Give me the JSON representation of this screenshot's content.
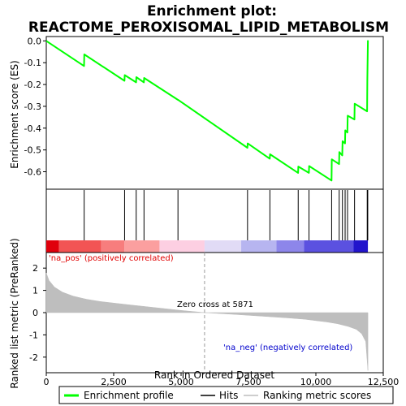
{
  "chart_data": {
    "type": "line",
    "title_line1": "Enrichment plot:",
    "title_line2": "REACTOME_PEROXISOMAL_LIPID_METABOLISM",
    "xlabel": "Rank in Ordered Dataset",
    "top_ylabel": "Enrichment score (ES)",
    "bottom_ylabel": "Ranked list metric (PreRanked)",
    "xlim": [
      0,
      12500
    ],
    "top_ylim": [
      -0.68,
      0.02
    ],
    "bottom_ylim": [
      -2.7,
      2.7
    ],
    "x_ticks": [
      0,
      2500,
      5000,
      7500,
      10000,
      12500
    ],
    "x_tick_labels": [
      "0",
      "2,500",
      "5,000",
      "7,500",
      "10,000",
      "12,500"
    ],
    "top_y_ticks": [
      0.0,
      -0.1,
      -0.2,
      -0.3,
      -0.4,
      -0.5,
      -0.6
    ],
    "top_y_tick_labels": [
      "0.0",
      "-0.1",
      "-0.2",
      "-0.3",
      "-0.4",
      "-0.5",
      "-0.6"
    ],
    "bottom_y_ticks": [
      2,
      1,
      0,
      -1,
      -2
    ],
    "bottom_y_tick_labels": [
      "2",
      "1",
      "0",
      "-1",
      "-2"
    ],
    "enrichment_profile": {
      "name": "Enrichment profile",
      "color": "#00ff00",
      "x": [
        0,
        1400,
        1410,
        2900,
        2910,
        3330,
        3340,
        3620,
        3630,
        4880,
        4890,
        7460,
        7470,
        8290,
        8300,
        9340,
        9350,
        9740,
        9750,
        10580,
        10590,
        10860,
        10870,
        10980,
        10990,
        11080,
        11090,
        11170,
        11180,
        11430,
        11440,
        11900,
        11910,
        11930
      ],
      "y": [
        0.0,
        -0.115,
        -0.062,
        -0.183,
        -0.157,
        -0.19,
        -0.166,
        -0.19,
        -0.17,
        -0.27,
        -0.27,
        -0.49,
        -0.47,
        -0.54,
        -0.52,
        -0.605,
        -0.576,
        -0.605,
        -0.574,
        -0.64,
        -0.543,
        -0.565,
        -0.51,
        -0.525,
        -0.46,
        -0.47,
        -0.41,
        -0.42,
        -0.343,
        -0.36,
        -0.288,
        -0.323,
        -0.175,
        0.003
      ]
    },
    "hits": {
      "name": "Hits",
      "color": "#000000",
      "x": [
        1405,
        2905,
        3335,
        3625,
        4885,
        7465,
        8295,
        9345,
        9745,
        10585,
        10865,
        10985,
        11085,
        11175,
        11435,
        11905,
        11925
      ]
    },
    "ranking_metric": {
      "name": "Ranking metric scores",
      "color": "#bebebe",
      "x": [
        0,
        100,
        300,
        600,
        1000,
        1500,
        2000,
        3000,
        4000,
        5000,
        5871,
        7000,
        8000,
        9000,
        9600,
        10000,
        10400,
        10800,
        11200,
        11500,
        11700,
        11850,
        11930
      ],
      "y": [
        1.78,
        1.45,
        1.15,
        0.92,
        0.74,
        0.6,
        0.5,
        0.36,
        0.23,
        0.1,
        0.0,
        -0.08,
        -0.16,
        -0.24,
        -0.3,
        -0.36,
        -0.42,
        -0.5,
        -0.62,
        -0.75,
        -0.95,
        -1.3,
        -2.6
      ]
    },
    "band_colors": [
      "#e0000c",
      "#f25454",
      "#f77d7d",
      "#fb9f9f",
      "#fdcfe2",
      "#e1dbf6",
      "#b7b5f0",
      "#8d86ea",
      "#5b51e0",
      "#2214cc"
    ],
    "band_edges": [
      0,
      470,
      2040,
      2900,
      4200,
      5871,
      7230,
      8540,
      9560,
      11400,
      11930
    ],
    "zero_cross_label": "Zero cross at 5871",
    "na_pos_label": "'na_pos' (positively correlated)",
    "na_neg_label": "'na_neg' (negatively correlated)",
    "legend": {
      "enrichment": "Enrichment profile",
      "hits": "Hits",
      "ranking": "Ranking metric scores"
    },
    "grid": false,
    "legend_placement": "bottom"
  }
}
